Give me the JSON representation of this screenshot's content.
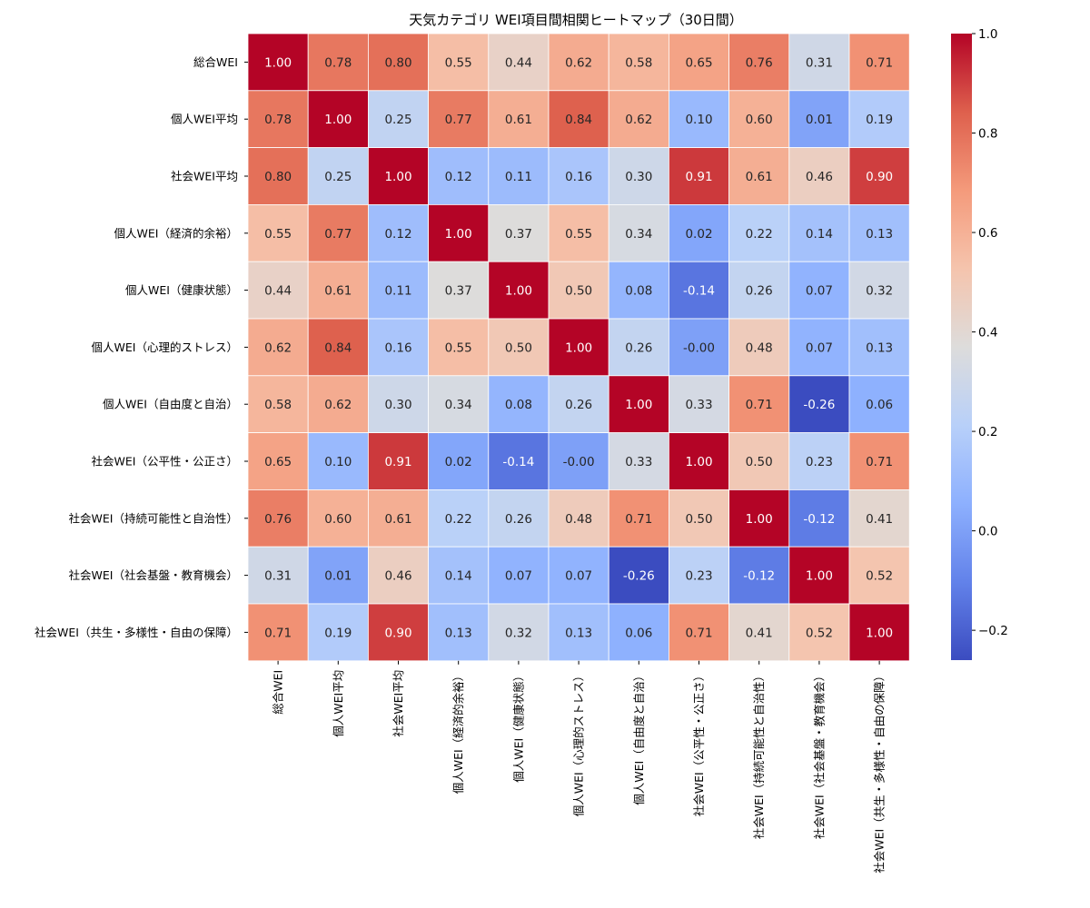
{
  "chart_data": {
    "type": "heatmap",
    "title": "天気カテゴリ WEI項目間相関ヒートマップ（30日間）",
    "xlabel": "",
    "ylabel": "",
    "labels": [
      "総合WEI",
      "個人WEI平均",
      "社会WEI平均",
      "個人WEI（経済的余裕）",
      "個人WEI（健康状態）",
      "個人WEI（心理的ストレス）",
      "個人WEI（自由度と自治）",
      "社会WEI（公平性・公正さ）",
      "社会WEI（持続可能性と自治性）",
      "社会WEI（社会基盤・教育機会）",
      "社会WEI（共生・多様性・自由の保障）"
    ],
    "values": [
      [
        1.0,
        0.78,
        0.8,
        0.55,
        0.44,
        0.62,
        0.58,
        0.65,
        0.76,
        0.31,
        0.71
      ],
      [
        0.78,
        1.0,
        0.25,
        0.77,
        0.61,
        0.84,
        0.62,
        0.1,
        0.6,
        0.01,
        0.19
      ],
      [
        0.8,
        0.25,
        1.0,
        0.12,
        0.11,
        0.16,
        0.3,
        0.91,
        0.61,
        0.46,
        0.9
      ],
      [
        0.55,
        0.77,
        0.12,
        1.0,
        0.37,
        0.55,
        0.34,
        0.02,
        0.22,
        0.14,
        0.13
      ],
      [
        0.44,
        0.61,
        0.11,
        0.37,
        1.0,
        0.5,
        0.08,
        -0.14,
        0.26,
        0.07,
        0.32
      ],
      [
        0.62,
        0.84,
        0.16,
        0.55,
        0.5,
        1.0,
        0.26,
        -0.0,
        0.48,
        0.07,
        0.13
      ],
      [
        0.58,
        0.62,
        0.3,
        0.34,
        0.08,
        0.26,
        1.0,
        0.33,
        0.71,
        -0.26,
        0.06
      ],
      [
        0.65,
        0.1,
        0.91,
        0.02,
        -0.14,
        -0.0,
        0.33,
        1.0,
        0.5,
        0.23,
        0.71
      ],
      [
        0.76,
        0.6,
        0.61,
        0.22,
        0.26,
        0.48,
        0.71,
        0.5,
        1.0,
        -0.12,
        0.41
      ],
      [
        0.31,
        0.01,
        0.46,
        0.14,
        0.07,
        0.07,
        -0.26,
        0.23,
        -0.12,
        1.0,
        0.52
      ],
      [
        0.71,
        0.19,
        0.9,
        0.13,
        0.32,
        0.13,
        0.06,
        0.71,
        0.41,
        0.52,
        1.0
      ]
    ],
    "value_labels": [
      [
        "1.00",
        "0.78",
        "0.80",
        "0.55",
        "0.44",
        "0.62",
        "0.58",
        "0.65",
        "0.76",
        "0.31",
        "0.71"
      ],
      [
        "0.78",
        "1.00",
        "0.25",
        "0.77",
        "0.61",
        "0.84",
        "0.62",
        "0.10",
        "0.60",
        "0.01",
        "0.19"
      ],
      [
        "0.80",
        "0.25",
        "1.00",
        "0.12",
        "0.11",
        "0.16",
        "0.30",
        "0.91",
        "0.61",
        "0.46",
        "0.90"
      ],
      [
        "0.55",
        "0.77",
        "0.12",
        "1.00",
        "0.37",
        "0.55",
        "0.34",
        "0.02",
        "0.22",
        "0.14",
        "0.13"
      ],
      [
        "0.44",
        "0.61",
        "0.11",
        "0.37",
        "1.00",
        "0.50",
        "0.08",
        "-0.14",
        "0.26",
        "0.07",
        "0.32"
      ],
      [
        "0.62",
        "0.84",
        "0.16",
        "0.55",
        "0.50",
        "1.00",
        "0.26",
        "-0.00",
        "0.48",
        "0.07",
        "0.13"
      ],
      [
        "0.58",
        "0.62",
        "0.30",
        "0.34",
        "0.08",
        "0.26",
        "1.00",
        "0.33",
        "0.71",
        "-0.26",
        "0.06"
      ],
      [
        "0.65",
        "0.10",
        "0.91",
        "0.02",
        "-0.14",
        "-0.00",
        "0.33",
        "1.00",
        "0.50",
        "0.23",
        "0.71"
      ],
      [
        "0.76",
        "0.60",
        "0.61",
        "0.22",
        "0.26",
        "0.48",
        "0.71",
        "0.50",
        "1.00",
        "-0.12",
        "0.41"
      ],
      [
        "0.31",
        "0.01",
        "0.46",
        "0.14",
        "0.07",
        "0.07",
        "-0.26",
        "0.23",
        "-0.12",
        "1.00",
        "0.52"
      ],
      [
        "0.71",
        "0.19",
        "0.90",
        "0.13",
        "0.32",
        "0.13",
        "0.06",
        "0.71",
        "0.41",
        "0.52",
        "1.00"
      ]
    ],
    "colormap": "coolwarm",
    "vmin": -0.26,
    "vmax": 1.0,
    "colorbar_ticks": [
      1.0,
      0.8,
      0.6,
      0.4,
      0.2,
      0.0,
      -0.2
    ],
    "colorbar_tick_labels": [
      "1.0",
      "0.8",
      "0.6",
      "0.4",
      "0.2",
      "0.0",
      "−0.2"
    ],
    "grid_line_color": "#ffffff",
    "text_color_dark": "#262626",
    "text_color_light": "#ffffff"
  }
}
